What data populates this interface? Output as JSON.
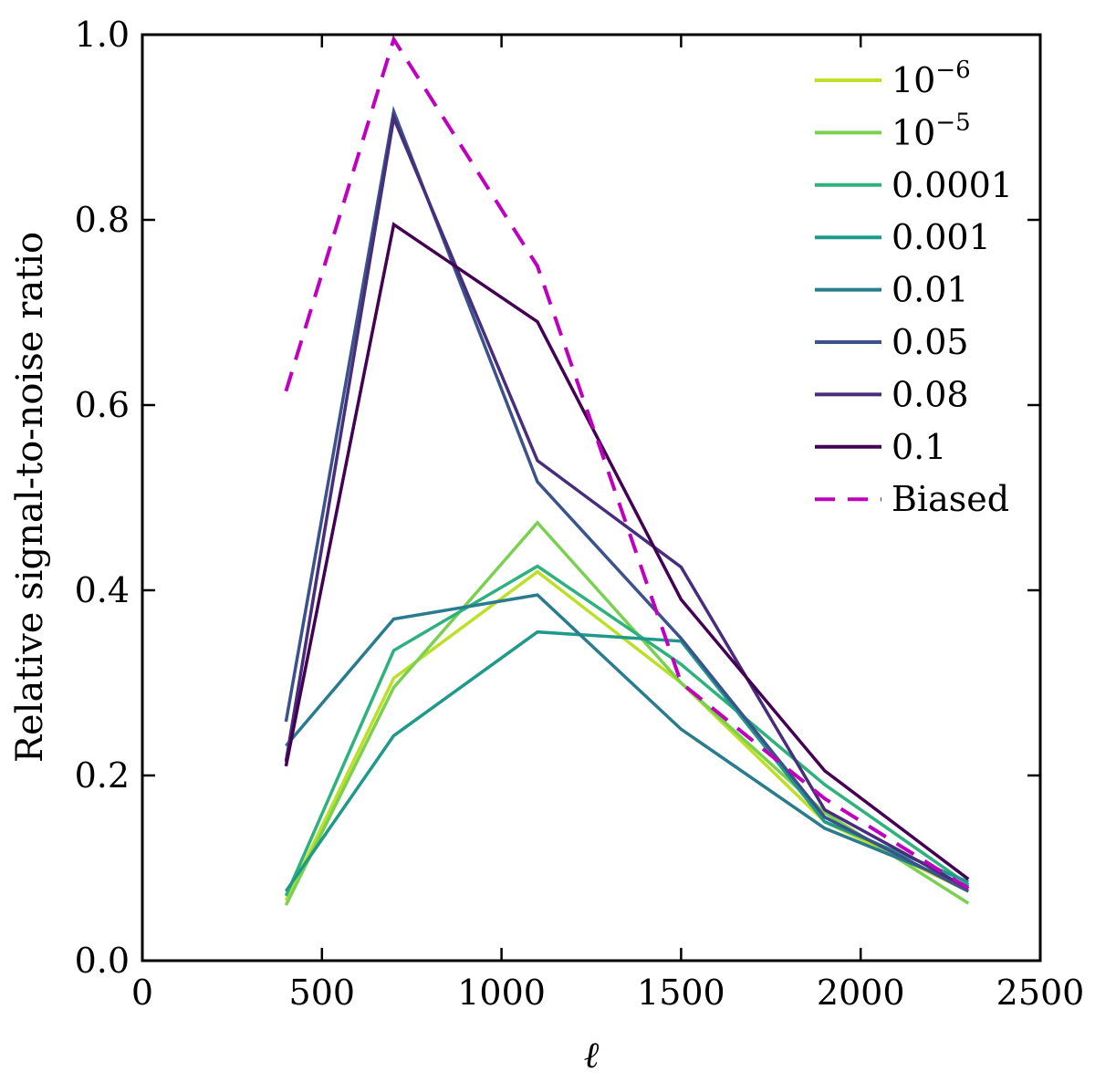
{
  "chart_data": {
    "type": "line",
    "title": "",
    "xlabel": "ℓ",
    "ylabel": "Relative signal-to-noise ratio",
    "xlim": [
      0,
      2500
    ],
    "ylim": [
      0.0,
      1.0
    ],
    "xticks": [
      0,
      500,
      1000,
      1500,
      2000,
      2500
    ],
    "xtick_labels": [
      "0",
      "500",
      "1000",
      "1500",
      "2000",
      "2500"
    ],
    "yticks": [
      0.0,
      0.2,
      0.4,
      0.6,
      0.8,
      1.0
    ],
    "ytick_labels": [
      "0.0",
      "0.2",
      "0.4",
      "0.6",
      "0.8",
      "1.0"
    ],
    "grid": false,
    "legend_position": "top-right",
    "x": [
      400,
      700,
      1100,
      1500,
      1900,
      2300
    ],
    "series": [
      {
        "name": "10⁻⁶",
        "label_base": "10",
        "label_exp": "−6",
        "color": "#bddf26",
        "dash": false,
        "values": [
          0.065,
          0.305,
          0.42,
          0.3,
          0.15,
          0.075
        ]
      },
      {
        "name": "10⁻⁵",
        "label_base": "10",
        "label_exp": "−5",
        "color": "#7ad151",
        "dash": false,
        "values": [
          0.06,
          0.295,
          0.473,
          0.3,
          0.16,
          0.062
        ]
      },
      {
        "name": "0.0001",
        "label_base": "0.0001",
        "label_exp": "",
        "color": "#2db27d",
        "dash": false,
        "values": [
          0.07,
          0.335,
          0.426,
          0.32,
          0.19,
          0.082
        ]
      },
      {
        "name": "0.001",
        "label_base": "0.001",
        "label_exp": "",
        "color": "#1f9a8a",
        "dash": false,
        "values": [
          0.075,
          0.243,
          0.355,
          0.345,
          0.15,
          0.085
        ]
      },
      {
        "name": "0.01",
        "label_base": "0.01",
        "label_exp": "",
        "color": "#287c8e",
        "dash": false,
        "values": [
          0.232,
          0.369,
          0.395,
          0.25,
          0.143,
          0.08
        ]
      },
      {
        "name": "0.05",
        "label_base": "0.05",
        "label_exp": "",
        "color": "#3b528b",
        "dash": false,
        "values": [
          0.258,
          0.917,
          0.517,
          0.348,
          0.155,
          0.075
        ]
      },
      {
        "name": "0.08",
        "label_base": "0.08",
        "label_exp": "",
        "color": "#472d7b",
        "dash": false,
        "values": [
          0.215,
          0.91,
          0.54,
          0.425,
          0.163,
          0.078
        ]
      },
      {
        "name": "0.1",
        "label_base": "0.1",
        "label_exp": "",
        "color": "#440154",
        "dash": false,
        "values": [
          0.21,
          0.795,
          0.69,
          0.39,
          0.205,
          0.088
        ]
      },
      {
        "name": "Biased",
        "label_base": "Biased",
        "label_exp": "",
        "color": "#bf00bf",
        "dash": true,
        "values": [
          0.615,
          0.995,
          0.75,
          0.3,
          0.175,
          0.078
        ]
      }
    ]
  }
}
